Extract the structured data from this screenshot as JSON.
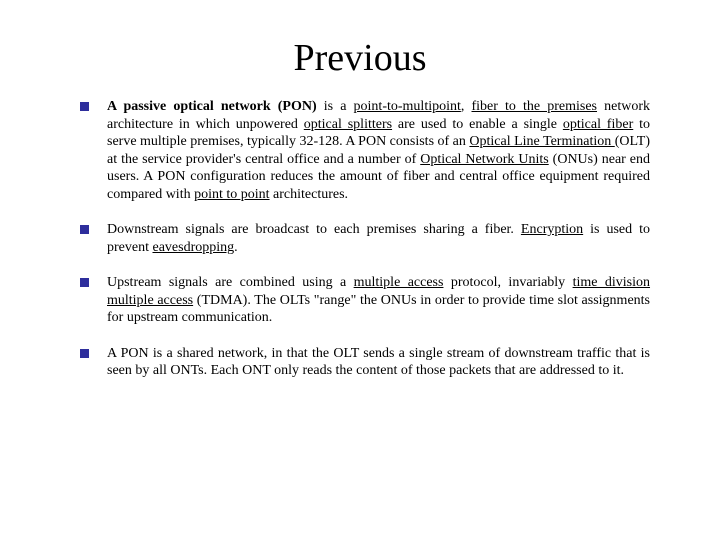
{
  "title": "Previous",
  "colors": {
    "bullet": "#2e2e9c",
    "text": "#000000",
    "background": "#ffffff"
  },
  "typography": {
    "title_fontsize": 38,
    "body_fontsize": 14,
    "font_family": "Georgia, serif"
  },
  "bullets": [
    {
      "segments": [
        {
          "text": "A passive optical network (PON)",
          "bold": true
        },
        {
          "text": " is a "
        },
        {
          "text": "point-to-multipoint",
          "underline": true
        },
        {
          "text": ", "
        },
        {
          "text": "fiber to the premises",
          "underline": true
        },
        {
          "text": " network architecture in which unpowered "
        },
        {
          "text": "optical splitters",
          "underline": true
        },
        {
          "text": " are used to enable a single "
        },
        {
          "text": "optical fiber",
          "underline": true
        },
        {
          "text": " to serve multiple premises, typically 32-128. A PON consists of an "
        },
        {
          "text": "Optical Line Termination ",
          "underline": true
        },
        {
          "text": "(OLT) at the service provider's central office and a number of "
        },
        {
          "text": "Optical Network Units",
          "underline": true
        },
        {
          "text": " (ONUs) near end users. A PON configuration reduces the amount of fiber and central office equipment required compared with "
        },
        {
          "text": "point to point",
          "underline": true
        },
        {
          "text": " architectures."
        }
      ]
    },
    {
      "segments": [
        {
          "text": "Downstream signals are broadcast to each premises sharing a fiber. "
        },
        {
          "text": "Encryption",
          "underline": true
        },
        {
          "text": " is used to prevent "
        },
        {
          "text": "eavesdropping",
          "underline": true
        },
        {
          "text": "."
        }
      ]
    },
    {
      "segments": [
        {
          "text": "Upstream signals are combined using a "
        },
        {
          "text": "multiple access",
          "underline": true
        },
        {
          "text": " protocol, invariably "
        },
        {
          "text": "time division multiple access",
          "underline": true
        },
        {
          "text": " (TDMA). The OLTs \"range\" the ONUs in order to provide time slot assignments for upstream communication."
        }
      ]
    },
    {
      "segments": [
        {
          "text": "A PON is a shared network, in that the OLT sends a single stream of downstream traffic that is seen by all ONTs. Each ONT only reads the content of those packets that are addressed to it."
        }
      ]
    }
  ]
}
